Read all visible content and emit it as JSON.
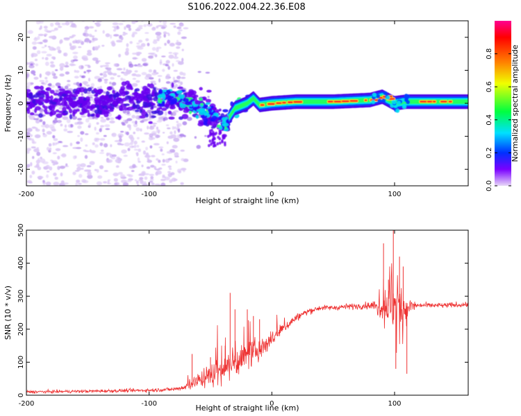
{
  "title": "S106.2022.004.22.36.E08",
  "chart_data": [
    {
      "type": "heatmap",
      "name": "spectrogram",
      "xlabel": "Height of straight line (km)",
      "ylabel": "Frequency (Hz)",
      "xlim": [
        -200,
        160
      ],
      "ylim": [
        -25,
        25
      ],
      "xticks": [
        -200,
        -100,
        0,
        100
      ],
      "yticks": [
        -20,
        -10,
        0,
        10,
        20
      ],
      "colorbar": {
        "label": "Normalized spectral amplitude",
        "range": [
          0,
          1
        ],
        "ticks": [
          "0.0",
          "0.2",
          "0.4",
          "0.6",
          "0.8"
        ],
        "tick_values": [
          0.0,
          0.2,
          0.4,
          0.6,
          0.8
        ],
        "colors": [
          "#e8d8f8",
          "#7a00ff",
          "#0030ff",
          "#00e0ff",
          "#00ff40",
          "#f0ff00",
          "#ff8000",
          "#ff0000",
          "#ff0090"
        ]
      },
      "ridge_center_hz": [
        [
          -200,
          0.5
        ],
        [
          -150,
          0.5
        ],
        [
          -100,
          1.0
        ],
        [
          -80,
          1.5
        ],
        [
          -65,
          0.0
        ],
        [
          -55,
          -2.5
        ],
        [
          -45,
          -4.0
        ],
        [
          -38,
          -6.0
        ],
        [
          -30,
          -1.5
        ],
        [
          -20,
          0.0
        ],
        [
          -15,
          1.5
        ],
        [
          -10,
          -0.5
        ],
        [
          0,
          0.0
        ],
        [
          20,
          0.5
        ],
        [
          50,
          0.5
        ],
        [
          80,
          1.0
        ],
        [
          90,
          2.0
        ],
        [
          100,
          0.0
        ],
        [
          110,
          0.5
        ],
        [
          130,
          0.5
        ],
        [
          160,
          0.5
        ]
      ],
      "peak_amplitude_regions_km": [
        [
          -10,
          20
        ],
        [
          45,
          65
        ],
        [
          75,
          95
        ],
        [
          120,
          150
        ]
      ]
    },
    {
      "type": "line",
      "name": "snr",
      "xlabel": "Height of straight line (km)",
      "ylabel": "SNR (10 * v/v)",
      "xlim": [
        -200,
        160
      ],
      "ylim": [
        0,
        500
      ],
      "xticks": [
        -200,
        -100,
        0,
        100
      ],
      "yticks": [
        0,
        100,
        200,
        300,
        400,
        500
      ],
      "series": [
        {
          "name": "SNR",
          "color": "#ee3030",
          "envelope_x": [
            -200,
            -150,
            -100,
            -80,
            -70,
            -60,
            -50,
            -40,
            -30,
            -20,
            -10,
            0,
            10,
            20,
            30,
            40,
            50,
            60,
            70,
            80,
            90,
            100,
            110,
            120,
            140,
            160
          ],
          "envelope_mean": [
            10,
            12,
            15,
            18,
            25,
            45,
            60,
            80,
            100,
            120,
            140,
            170,
            205,
            235,
            255,
            265,
            265,
            268,
            270,
            272,
            270,
            270,
            270,
            272,
            272,
            275
          ],
          "envelope_spread": [
            6,
            6,
            7,
            8,
            12,
            30,
            45,
            60,
            60,
            55,
            45,
            30,
            22,
            15,
            12,
            10,
            10,
            12,
            12,
            14,
            40,
            110,
            40,
            10,
            10,
            10
          ],
          "spikes": [
            [
              -65,
              125
            ],
            [
              -50,
              115
            ],
            [
              -38,
              150
            ],
            [
              -34,
              310
            ],
            [
              -30,
              260
            ],
            [
              -20,
              260
            ],
            [
              -15,
              240
            ],
            [
              -10,
              230
            ],
            [
              91,
              460
            ],
            [
              95,
              350
            ],
            [
              99,
              500
            ],
            [
              101,
              80
            ],
            [
              104,
              420
            ],
            [
              107,
              390
            ],
            [
              110,
              65
            ]
          ]
        }
      ]
    }
  ]
}
